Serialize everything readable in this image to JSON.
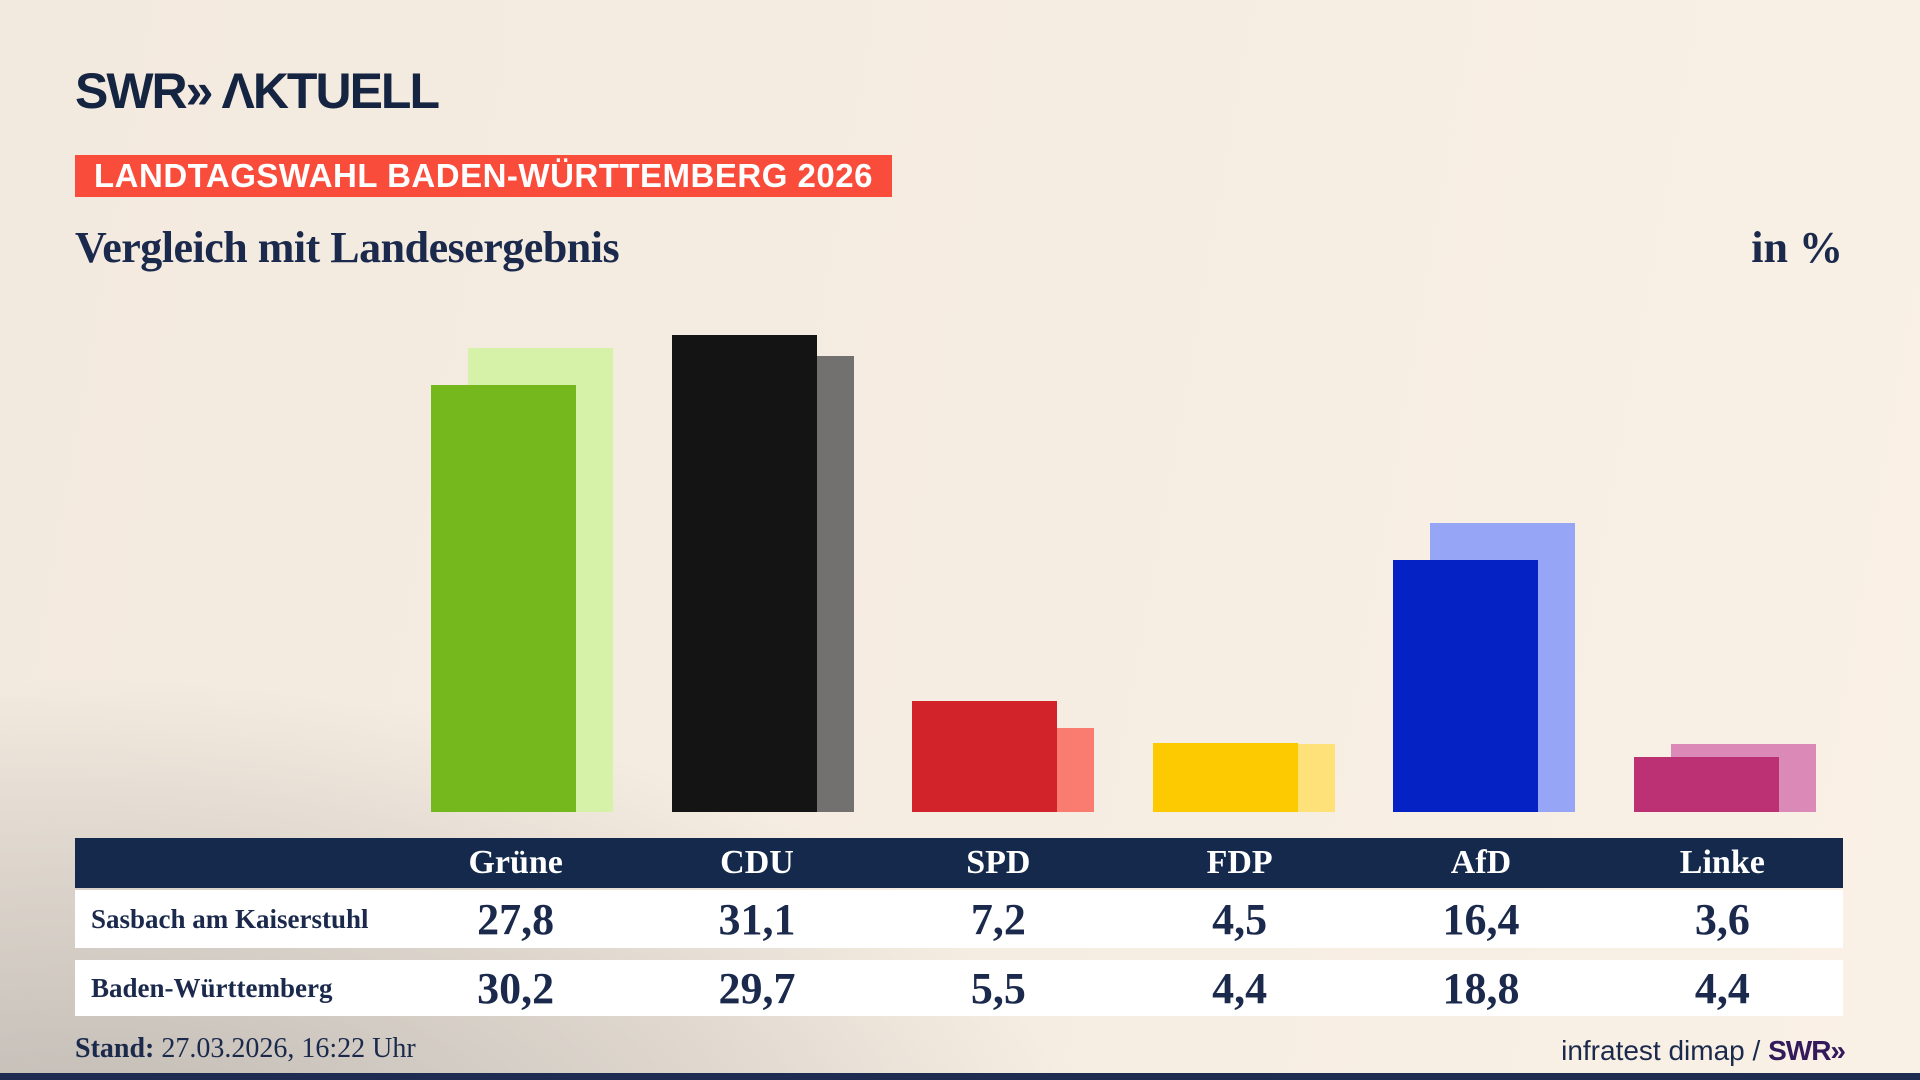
{
  "header": {
    "logo_brand": "SWR",
    "logo_chevrons": "»",
    "logo_product": "ΛKTUELL",
    "badge": "LANDTAGSWAHL BADEN-WÜRTTEMBERG 2026",
    "title": "Vergleich mit Landesergebnis",
    "unit_label": "in %"
  },
  "chart_data": {
    "type": "bar",
    "categories": [
      "Grüne",
      "CDU",
      "SPD",
      "FDP",
      "AfD",
      "Linke"
    ],
    "series": [
      {
        "name": "Sasbach am Kaiserstuhl",
        "values": [
          27.8,
          31.1,
          7.2,
          4.5,
          16.4,
          3.6
        ],
        "colors": [
          "#74b81e",
          "#141414",
          "#d2232a",
          "#fdca02",
          "#0522c5",
          "#bc3074"
        ]
      },
      {
        "name": "Baden-Württemberg",
        "values": [
          30.2,
          29.7,
          5.5,
          4.4,
          18.8,
          4.4
        ],
        "colors": [
          "#d5f2a8",
          "#737170",
          "#fa7b6f",
          "#fee178",
          "#96a5f6",
          "#db89b6"
        ]
      }
    ],
    "title": "Vergleich mit Landesergebnis",
    "unit": "in %",
    "ylim": [
      0,
      33
    ],
    "grid": false,
    "legend_position": "none",
    "note": "front bar = Sasbach am Kaiserstuhl, offset lighter back bar = Baden-Württemberg"
  },
  "table": {
    "corner_label": "",
    "columns": [
      "Grüne",
      "CDU",
      "SPD",
      "FDP",
      "AfD",
      "Linke"
    ],
    "rows": [
      {
        "label": "Sasbach am Kaiserstuhl",
        "values": [
          "27,8",
          "31,1",
          "7,2",
          "4,5",
          "16,4",
          "3,6"
        ]
      },
      {
        "label": "Baden-Württemberg",
        "values": [
          "30,2",
          "29,7",
          "5,5",
          "4,4",
          "18,8",
          "4,4"
        ]
      }
    ]
  },
  "footer": {
    "stand_label": "Stand:",
    "stand_value": " 27.03.2026, 16:22 Uhr",
    "source_text": "infratest dimap / ",
    "source_brand": "SWR»"
  },
  "colors": {
    "background_beige": "#f6ede2",
    "background_gray": "#94928f",
    "badge_red": "#f94c3b",
    "navy_text": "#1b2a4c",
    "table_header_navy": "#14294b",
    "brand_purple": "#331a5b"
  }
}
